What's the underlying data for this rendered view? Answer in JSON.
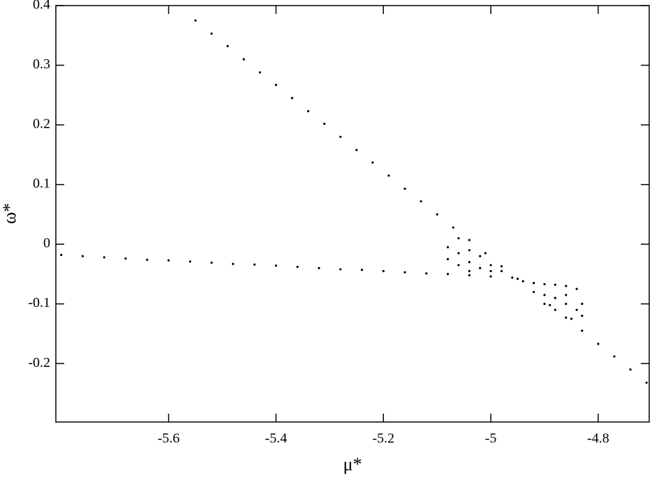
{
  "chart_data": {
    "type": "scatter",
    "xlabel": "μ*",
    "ylabel": "ω*",
    "xlim": [
      -5.81,
      -4.705
    ],
    "ylim": [
      -0.298,
      0.4
    ],
    "xticks": [
      -5.6,
      -5.4,
      -5.2,
      -5,
      -4.8
    ],
    "yticks": [
      0.4,
      0.3,
      0.2,
      0.1,
      0,
      -0.1,
      -0.2
    ],
    "series": [
      {
        "color": "#000000",
        "x": [
          -5.55,
          -5.52,
          -5.49,
          -5.46,
          -5.43,
          -5.4,
          -5.37,
          -5.34,
          -5.31,
          -5.28,
          -5.25,
          -5.22,
          -5.19,
          -5.16,
          -5.13,
          -5.1,
          -5.07,
          -5.04,
          -5.01,
          -4.98,
          -4.95,
          -4.92,
          -4.89,
          -4.86,
          -4.83,
          -4.8,
          -4.77,
          -4.74,
          -4.71
        ],
        "values": [
          0.375,
          0.353,
          0.332,
          0.31,
          0.288,
          0.267,
          0.245,
          0.223,
          0.202,
          0.18,
          0.158,
          0.137,
          0.115,
          0.093,
          0.072,
          0.05,
          0.028,
          0.007,
          -0.015,
          -0.037,
          -0.058,
          -0.08,
          -0.102,
          -0.123,
          -0.145,
          -0.167,
          -0.188,
          -0.21,
          -0.232
        ]
      },
      {
        "color": "#000000",
        "x": [
          -5.8,
          -5.76,
          -5.72,
          -5.68,
          -5.64,
          -5.6,
          -5.56,
          -5.52,
          -5.48,
          -5.44,
          -5.4,
          -5.36,
          -5.32,
          -5.28,
          -5.24,
          -5.2,
          -5.16,
          -5.12,
          -5.08,
          -5.04,
          -5.0,
          -4.96
        ],
        "values": [
          -0.018,
          -0.02,
          -0.022,
          -0.024,
          -0.026,
          -0.027,
          -0.029,
          -0.031,
          -0.033,
          -0.034,
          -0.036,
          -0.038,
          -0.04,
          -0.042,
          -0.043,
          -0.045,
          -0.047,
          -0.049,
          -0.05,
          -0.052,
          -0.054,
          -0.056
        ]
      },
      {
        "color": "#000000",
        "x": [
          -5.08,
          -5.08,
          -5.06,
          -5.06,
          -5.06,
          -5.04,
          -5.04,
          -5.04,
          -5.02,
          -5.02,
          -5.0,
          -5.0,
          -4.98,
          -4.94,
          -4.92,
          -4.9,
          -4.88,
          -4.86,
          -4.84,
          -4.83,
          -4.83,
          -4.9,
          -4.88,
          -4.86,
          -4.84,
          -4.86,
          -4.88,
          -4.85,
          -4.9
        ],
        "values": [
          -0.005,
          -0.025,
          0.01,
          -0.015,
          -0.035,
          -0.01,
          -0.03,
          -0.045,
          -0.02,
          -0.04,
          -0.035,
          -0.045,
          -0.045,
          -0.062,
          -0.065,
          -0.067,
          -0.068,
          -0.07,
          -0.075,
          -0.1,
          -0.12,
          -0.085,
          -0.09,
          -0.1,
          -0.11,
          -0.085,
          -0.11,
          -0.125,
          -0.1
        ]
      }
    ]
  }
}
